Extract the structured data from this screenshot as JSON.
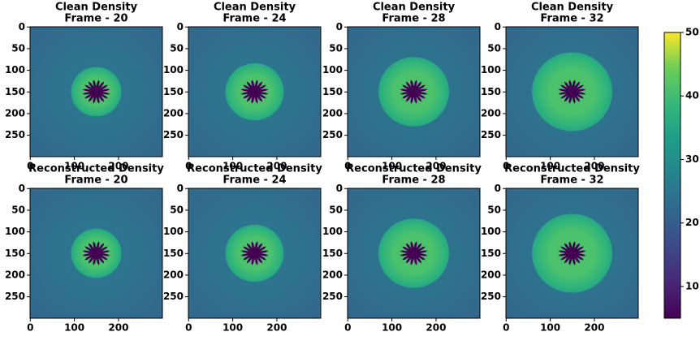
{
  "chart_data": [
    {
      "type": "image",
      "title": "Clean Density",
      "subtitle": "Frame - 20",
      "xlim": [
        -0.5,
        299.5
      ],
      "ylim": [
        299.5,
        -0.5
      ],
      "xticks": [
        0,
        100,
        200
      ],
      "yticks": [
        0,
        50,
        100,
        150,
        200,
        250
      ]
    },
    {
      "type": "image",
      "title": "Clean Density",
      "subtitle": "Frame - 24",
      "xlim": [
        -0.5,
        299.5
      ],
      "ylim": [
        299.5,
        -0.5
      ],
      "xticks": [
        0,
        100,
        200
      ],
      "yticks": [
        0,
        50,
        100,
        150,
        200,
        250
      ]
    },
    {
      "type": "image",
      "title": "Clean Density",
      "subtitle": "Frame - 28",
      "xlim": [
        -0.5,
        299.5
      ],
      "ylim": [
        299.5,
        -0.5
      ],
      "xticks": [
        0,
        100,
        200
      ],
      "yticks": [
        0,
        50,
        100,
        150,
        200,
        250
      ]
    },
    {
      "type": "image",
      "title": "Clean Density",
      "subtitle": "Frame - 32",
      "xlim": [
        -0.5,
        299.5
      ],
      "ylim": [
        299.5,
        -0.5
      ],
      "xticks": [
        0,
        100,
        200
      ],
      "yticks": [
        0,
        50,
        100,
        150,
        200,
        250
      ]
    },
    {
      "type": "image",
      "title": "Reconstructed Density",
      "subtitle": "Frame - 20",
      "xlim": [
        -0.5,
        299.5
      ],
      "ylim": [
        299.5,
        -0.5
      ],
      "xticks": [
        0,
        100,
        200
      ],
      "yticks": [
        0,
        50,
        100,
        150,
        200,
        250
      ]
    },
    {
      "type": "image",
      "title": "Reconstructed Density",
      "subtitle": "Frame - 24",
      "xlim": [
        -0.5,
        299.5
      ],
      "ylim": [
        299.5,
        -0.5
      ],
      "xticks": [
        0,
        100,
        200
      ],
      "yticks": [
        0,
        50,
        100,
        150,
        200,
        250
      ]
    },
    {
      "type": "image",
      "title": "Reconstructed Density",
      "subtitle": "Frame - 28",
      "xlim": [
        -0.5,
        299.5
      ],
      "ylim": [
        299.5,
        -0.5
      ],
      "xticks": [
        0,
        100,
        200
      ],
      "yticks": [
        0,
        50,
        100,
        150,
        200,
        250
      ]
    },
    {
      "type": "image",
      "title": "Reconstructed Density",
      "subtitle": "Frame - 32",
      "xlim": [
        -0.5,
        299.5
      ],
      "ylim": [
        299.5,
        -0.5
      ],
      "xticks": [
        0,
        100,
        200
      ],
      "yticks": [
        0,
        50,
        100,
        150,
        200,
        250
      ]
    },
    {
      "type": "colorbar",
      "colormap": "viridis",
      "ylim": [
        5,
        50
      ],
      "yticks": [
        10,
        20,
        30,
        40,
        50
      ]
    }
  ]
}
